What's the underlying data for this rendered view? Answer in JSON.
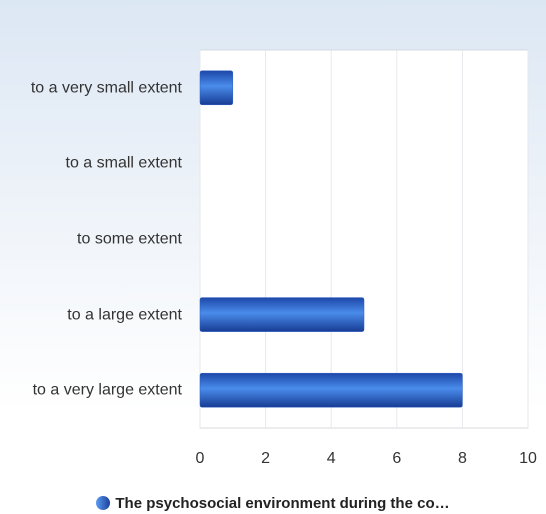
{
  "chart_data": {
    "type": "bar",
    "orientation": "horizontal",
    "categories": [
      "to a very small extent",
      "to a small extent",
      "to some extent",
      "to a large extent",
      "to a very large extent"
    ],
    "series": [
      {
        "name": "The psychosocial environment during the co…",
        "color": "#2a5cc4",
        "values": [
          1,
          0,
          0,
          5,
          8
        ]
      }
    ],
    "xlim": [
      0,
      10
    ],
    "xticks": [
      0,
      2,
      4,
      6,
      8,
      10
    ],
    "grid": true
  }
}
